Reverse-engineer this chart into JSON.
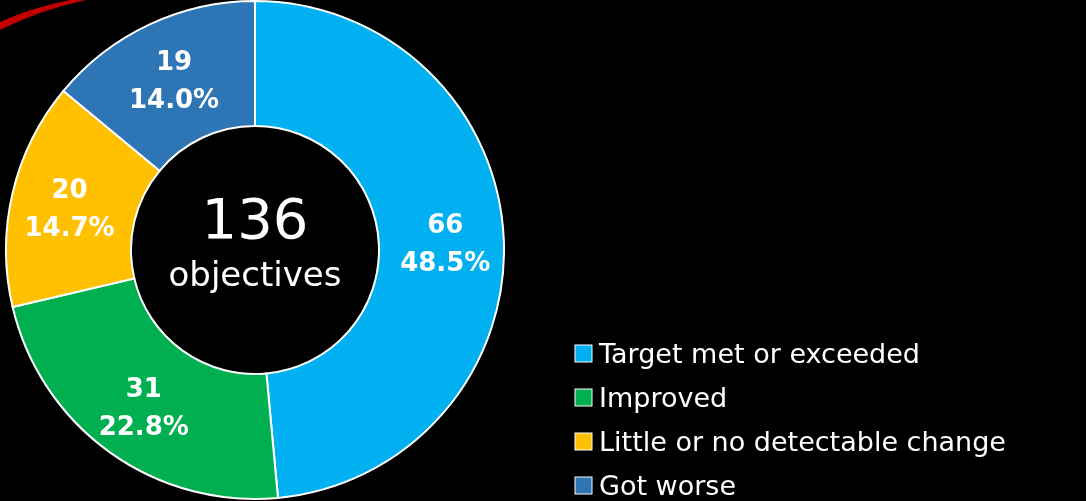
{
  "chart_data": {
    "type": "donut",
    "categories": [
      "Target met or exceeded",
      "Improved",
      "Little or no detectable change",
      "Got worse"
    ],
    "values": [
      66,
      31,
      20,
      19
    ],
    "colors": [
      "#00b0f0",
      "#00b050",
      "#ffc000",
      "#2e75b6"
    ],
    "value_labels": [
      "66\n48.5%",
      "31\n22.8%",
      "20\n14.7%",
      "19\n14.0%"
    ],
    "annotations": [
      "136",
      "objectives"
    ],
    "legend": "bottom right"
  }
}
